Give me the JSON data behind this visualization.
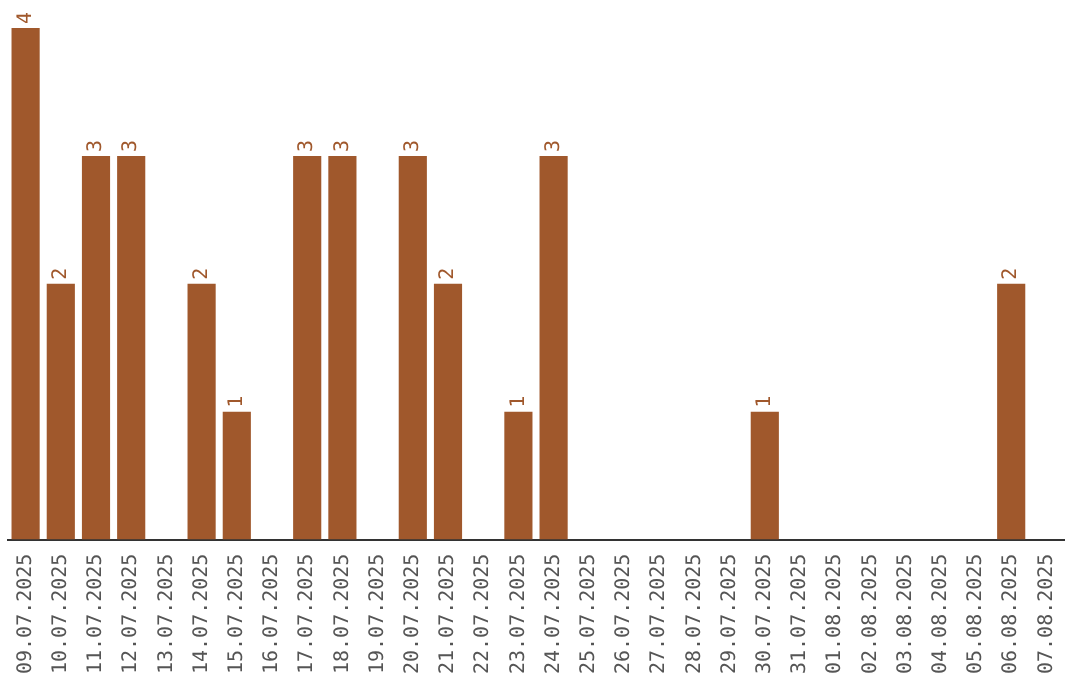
{
  "chart_data": {
    "type": "bar",
    "categories": [
      "09.07.2025",
      "10.07.2025",
      "11.07.2025",
      "12.07.2025",
      "13.07.2025",
      "14.07.2025",
      "15.07.2025",
      "16.07.2025",
      "17.07.2025",
      "18.07.2025",
      "19.07.2025",
      "20.07.2025",
      "21.07.2025",
      "22.07.2025",
      "23.07.2025",
      "24.07.2025",
      "25.07.2025",
      "26.07.2025",
      "27.07.2025",
      "28.07.2025",
      "29.07.2025",
      "30.07.2025",
      "31.07.2025",
      "01.08.2025",
      "02.08.2025",
      "03.08.2025",
      "04.08.2025",
      "05.08.2025",
      "06.08.2025",
      "07.08.2025"
    ],
    "values": [
      4,
      2,
      3,
      3,
      0,
      2,
      1,
      0,
      3,
      3,
      0,
      3,
      2,
      0,
      1,
      3,
      0,
      0,
      0,
      0,
      0,
      1,
      0,
      0,
      0,
      0,
      0,
      0,
      2,
      0
    ],
    "value_labels": [
      "4",
      "2",
      "3",
      "3",
      null,
      "2",
      "1",
      null,
      "3",
      "3",
      null,
      "3",
      "2",
      null,
      "1",
      "3",
      null,
      null,
      null,
      null,
      null,
      "1",
      null,
      null,
      null,
      null,
      null,
      null,
      "2",
      null
    ],
    "color": "#a0582c",
    "ylim": [
      0,
      4
    ],
    "tick_labels": "x",
    "grid": false,
    "legend": false
  }
}
